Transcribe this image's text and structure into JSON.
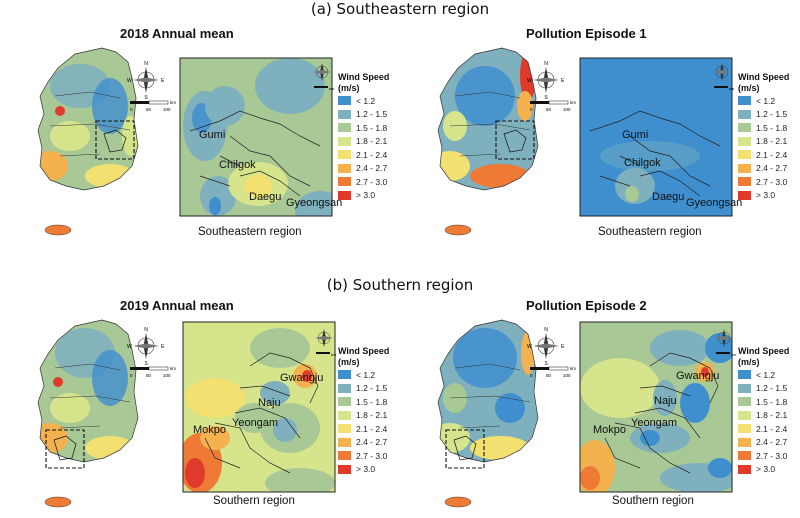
{
  "sections": [
    {
      "label": "(a) Southeastern region",
      "panels": [
        {
          "title": "2018 Annual mean",
          "caption": "Southeastern region",
          "cities": [
            "Gumi",
            "Chilgok",
            "Daegu",
            "Gyeongsan"
          ]
        },
        {
          "title": "Pollution Episode 1",
          "caption": "Southeastern region",
          "cities": [
            "Gumi",
            "Chilgok",
            "Daegu",
            "Gyeongsan"
          ]
        }
      ]
    },
    {
      "label": "(b) Southern region",
      "panels": [
        {
          "title": "2019 Annual mean",
          "caption": "Southern region",
          "cities": [
            "Gwangju",
            "Naju",
            "Yeongam",
            "Mokpo"
          ]
        },
        {
          "title": "Pollution Episode 2",
          "caption": "Southern region",
          "cities": [
            "Gwangju",
            "Naju",
            "Yeongam",
            "Mokpo"
          ]
        }
      ]
    }
  ],
  "legend": {
    "title_line1": "Wind Speed",
    "title_line2": "(m/s)",
    "classes": [
      {
        "label": "< 1.2",
        "color": "#3f8fcf"
      },
      {
        "label": "1.2 - 1.5",
        "color": "#7fb0bd"
      },
      {
        "label": "1.5 - 1.8",
        "color": "#a8c896"
      },
      {
        "label": "1.8 - 2.1",
        "color": "#d6e48c"
      },
      {
        "label": "2.1 - 2.4",
        "color": "#f2e070"
      },
      {
        "label": "2.4 - 2.7",
        "color": "#f3b24e"
      },
      {
        "label": "2.7 - 3.0",
        "color": "#ee7a36"
      },
      {
        "label": "> 3.0",
        "color": "#e03a2a"
      }
    ]
  },
  "compass": {
    "n": "N",
    "s": "S",
    "e": "E",
    "w": "W"
  },
  "scale_bar": {
    "ticks": [
      "0",
      "50",
      "100"
    ],
    "unit": "km"
  },
  "zoom_scale_bar": {
    "unit": "km"
  }
}
